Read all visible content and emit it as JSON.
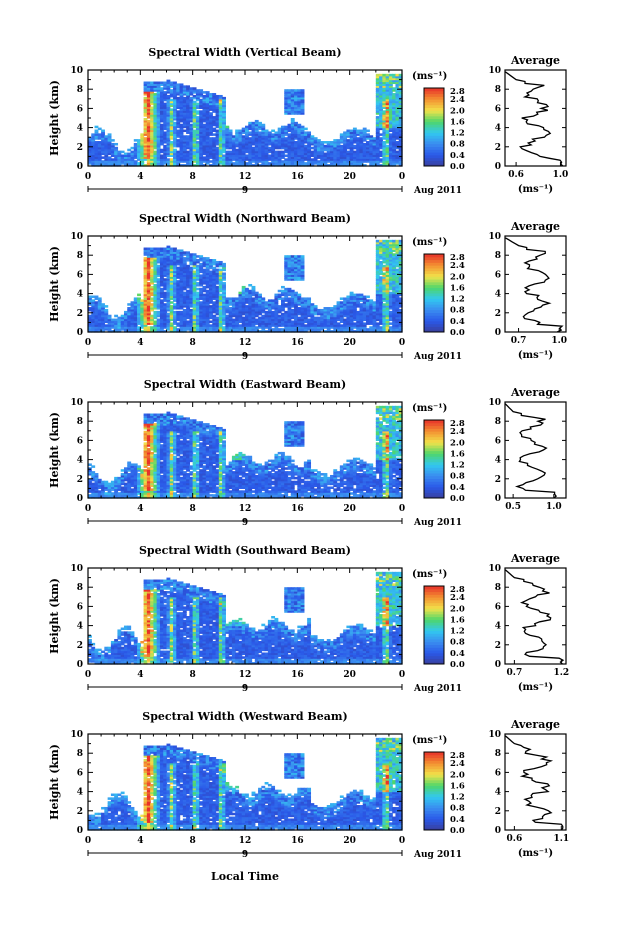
{
  "chart_data": [
    {
      "type": "heatmap",
      "title": "Spectral Width (Vertical Beam)",
      "ylabel": "Height (km)",
      "x_ticks": [
        "0",
        "4",
        "8",
        "12",
        "16",
        "20",
        "0"
      ],
      "y_ticks": [
        "0",
        "2",
        "4",
        "6",
        "8",
        "10"
      ],
      "ylim": [
        0,
        10
      ],
      "xlim": [
        0,
        24
      ],
      "date_marker": "9",
      "date_label": "Aug 2011",
      "colorbar": {
        "unit": "(ms⁻¹)",
        "labels": [
          "2.8",
          "2.4",
          "2.0",
          "1.6",
          "1.2",
          "0.8",
          "0.4",
          "0.0"
        ],
        "range": [
          0,
          2.8
        ]
      },
      "profile": {
        "title": "Average",
        "x_ticks": [
          "0.6",
          "1.0"
        ],
        "xlim": [
          0.5,
          1.05
        ],
        "unit": "(ms⁻¹)",
        "y_ticks": [
          "0",
          "2",
          "4",
          "6",
          "8",
          "10"
        ]
      }
    },
    {
      "type": "heatmap",
      "title": "Spectral Width (Northward Beam)",
      "ylabel": "Height (km)",
      "x_ticks": [
        "0",
        "4",
        "8",
        "12",
        "16",
        "20",
        "0"
      ],
      "y_ticks": [
        "0",
        "2",
        "4",
        "6",
        "8",
        "10"
      ],
      "ylim": [
        0,
        10
      ],
      "xlim": [
        0,
        24
      ],
      "date_marker": "9",
      "date_label": "Aug 2011",
      "colorbar": {
        "unit": "(ms⁻¹)",
        "labels": [
          "2.8",
          "2.4",
          "2.0",
          "1.6",
          "1.2",
          "0.8",
          "0.4",
          "0.0"
        ],
        "range": [
          0,
          2.8
        ]
      },
      "profile": {
        "title": "Average",
        "x_ticks": [
          "0.7",
          "1.0"
        ],
        "xlim": [
          0.6,
          1.05
        ],
        "unit": "(ms⁻¹)",
        "y_ticks": [
          "0",
          "2",
          "4",
          "6",
          "8",
          "10"
        ]
      }
    },
    {
      "type": "heatmap",
      "title": "Spectral Width (Eastward Beam)",
      "ylabel": "Height (km)",
      "x_ticks": [
        "0",
        "4",
        "8",
        "12",
        "16",
        "20",
        "0"
      ],
      "y_ticks": [
        "0",
        "2",
        "4",
        "6",
        "8",
        "10"
      ],
      "ylim": [
        0,
        10
      ],
      "xlim": [
        0,
        24
      ],
      "date_marker": "9",
      "date_label": "Aug 2011",
      "colorbar": {
        "unit": "(ms⁻¹)",
        "labels": [
          "2.8",
          "2.4",
          "2.0",
          "1.6",
          "1.2",
          "0.8",
          "0.4",
          "0.0"
        ],
        "range": [
          0,
          2.8
        ]
      },
      "profile": {
        "title": "Average",
        "x_ticks": [
          "0.5",
          "1.0"
        ],
        "xlim": [
          0.4,
          1.15
        ],
        "unit": "",
        "y_ticks": [
          "0",
          "2",
          "4",
          "6",
          "8",
          "10"
        ]
      }
    },
    {
      "type": "heatmap",
      "title": "Spectral Width (Southward Beam)",
      "ylabel": "Height (km)",
      "x_ticks": [
        "0",
        "4",
        "8",
        "12",
        "16",
        "20",
        "0"
      ],
      "y_ticks": [
        "0",
        "2",
        "4",
        "6",
        "8",
        "10"
      ],
      "ylim": [
        0,
        10
      ],
      "xlim": [
        0,
        24
      ],
      "date_marker": "9",
      "date_label": "Aug 2011",
      "colorbar": {
        "unit": "(ms⁻¹)",
        "labels": [
          "2.8",
          "2.4",
          "2.0",
          "1.6",
          "1.2",
          "0.8",
          "0.4",
          "0.0"
        ],
        "range": [
          0,
          2.8
        ]
      },
      "profile": {
        "title": "Average",
        "x_ticks": [
          "0.7",
          "1.2"
        ],
        "xlim": [
          0.6,
          1.25
        ],
        "unit": "(ms⁻¹)",
        "y_ticks": [
          "0",
          "2",
          "4",
          "6",
          "8",
          "10"
        ]
      }
    },
    {
      "type": "heatmap",
      "title": "Spectral Width (Westward Beam)",
      "ylabel": "Height (km)",
      "x_ticks": [
        "0",
        "4",
        "8",
        "12",
        "16",
        "20",
        "0"
      ],
      "y_ticks": [
        "0",
        "2",
        "4",
        "6",
        "8",
        "10"
      ],
      "ylim": [
        0,
        10
      ],
      "xlim": [
        0,
        24
      ],
      "date_marker": "9",
      "date_label": "Aug 2011",
      "colorbar": {
        "unit": "(ms⁻¹)",
        "labels": [
          "2.8",
          "2.4",
          "2.0",
          "1.6",
          "1.2",
          "0.8",
          "0.4",
          "0.0"
        ],
        "range": [
          0,
          2.8
        ]
      },
      "profile": {
        "title": "Average",
        "x_ticks": [
          "0.6",
          "1.1"
        ],
        "xlim": [
          0.5,
          1.15
        ],
        "unit": "(ms⁻¹)",
        "y_ticks": [
          "0",
          "2",
          "4",
          "6",
          "8",
          "10"
        ]
      }
    }
  ],
  "xlabel": "Local Time",
  "colors": {
    "low": "#3a3f9a",
    "blue": "#2a58e8",
    "cyan": "#32c8f0",
    "green": "#4fd66a",
    "yellow": "#f2e24a",
    "orange": "#f39232",
    "red": "#e8322a"
  }
}
